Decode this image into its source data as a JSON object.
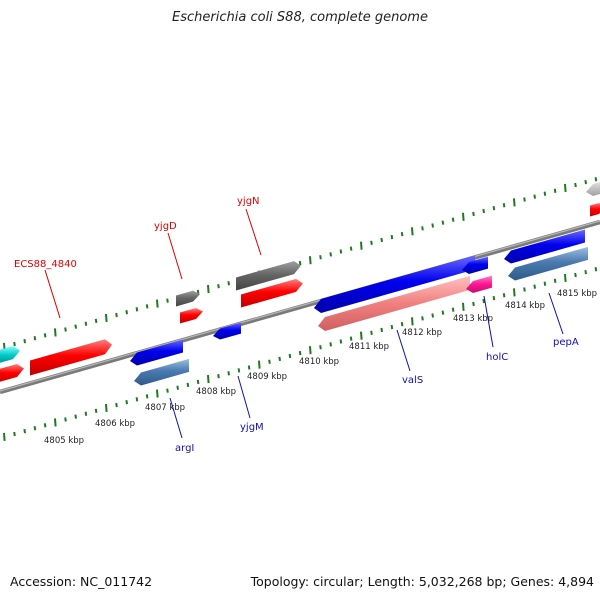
{
  "title": "Escherichia coli S88, complete genome",
  "footer": {
    "accession": "Accession: NC_011742",
    "topology": "Topology: circular; Length: 5,032,268 bp; Genes: 4,894"
  },
  "kbp_labels": [
    "4805 kbp",
    "4806 kbp",
    "4807 kbp",
    "4808 kbp",
    "4809 kbp",
    "4810 kbp",
    "4811 kbp",
    "4812 kbp",
    "4813 kbp",
    "4814 kbp",
    "4815 kbp"
  ],
  "gene_labels": {
    "ecs88_4840": "ECS88_4840",
    "yjgD": "yjgD",
    "yjgN": "yjgN",
    "argI": "argI",
    "yjgM": "yjgM",
    "valS": "valS",
    "holC": "holC",
    "pepA": "pepA"
  },
  "colors": {
    "forward_gene": "#ff0000",
    "reverse_gene": "#0000ee",
    "forward_alt": "#666666",
    "reverse_alt": "#4a7ab0",
    "valS_rna": "#f08080",
    "holC_pink": "#ff1493",
    "cyan_gene": "#00c8c8",
    "tick": "#1e7a1e",
    "backbone": "#888888"
  }
}
